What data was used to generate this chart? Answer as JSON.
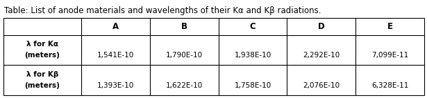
{
  "title": "Table: List of anode materials and wavelengths of their Kα and Kβ radiations.",
  "col_headers": [
    "",
    "A",
    "B",
    "C",
    "D",
    "E"
  ],
  "row1_label_line1": "λ for Kα",
  "row1_label_line2": "(meters)",
  "row2_label_line1": "λ for Kβ",
  "row2_label_line2": "(meters)",
  "row1_values": [
    "1,541E-10",
    "1,790E-10",
    "1,938E-10",
    "2,292E-10",
    "7,099E-11"
  ],
  "row2_values": [
    "1,393E-10",
    "1,622E-10",
    "1,758E-10",
    "2,076E-10",
    "6,328E-11"
  ],
  "background_color": "#ffffff",
  "text_color": "#000000",
  "title_fontsize": 8.5,
  "cell_fontsize": 7.5,
  "header_fontsize": 8.5,
  "figwidth": 6.15,
  "figheight": 1.42,
  "dpi": 100
}
